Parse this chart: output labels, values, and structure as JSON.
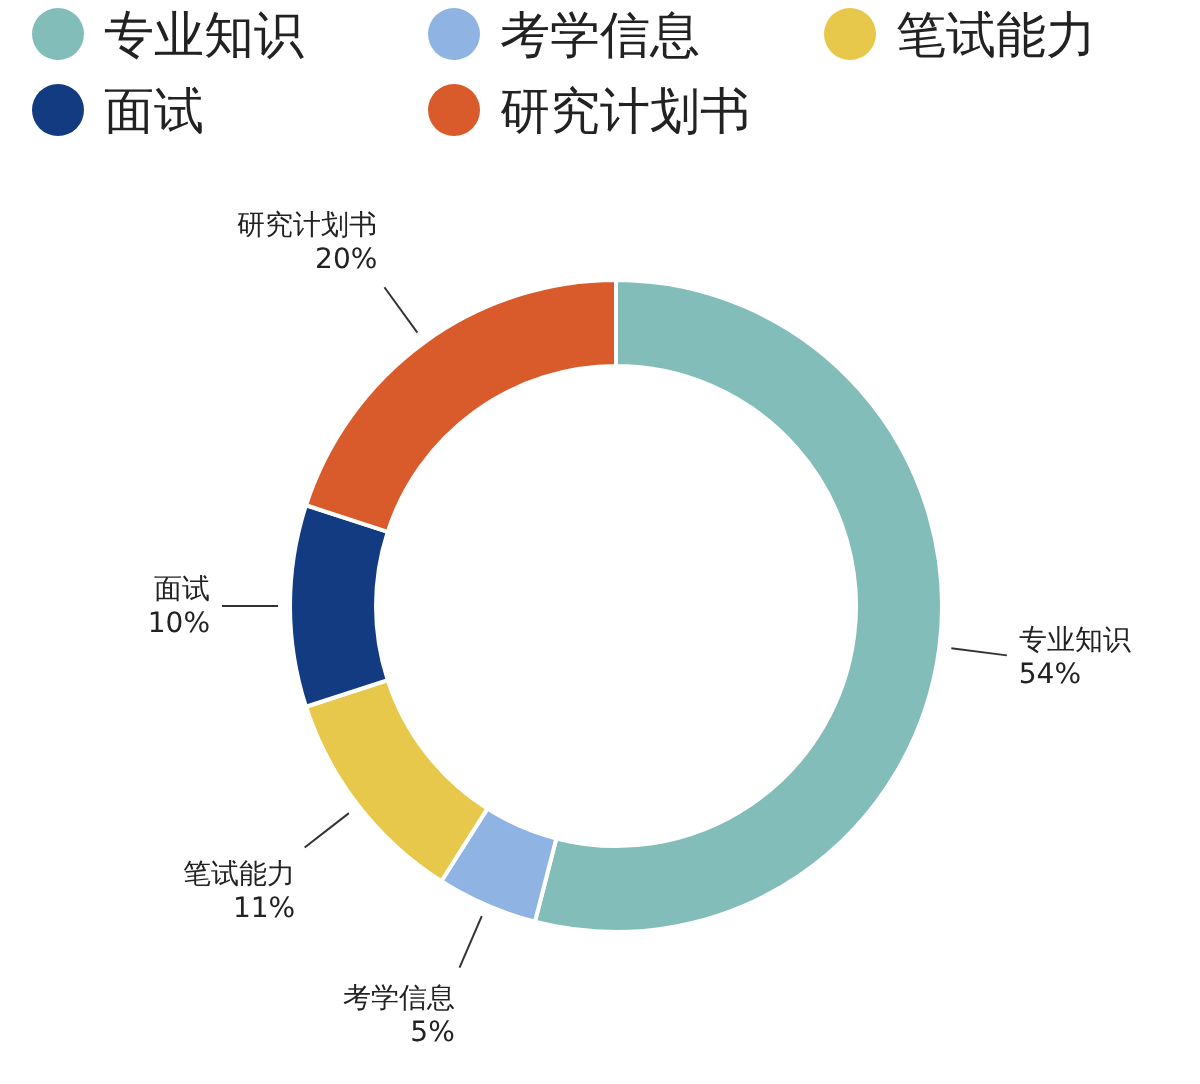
{
  "chart_data": {
    "type": "donut",
    "categories": [
      "专业知识",
      "考学信息",
      "笔试能力",
      "面试",
      "研究计划书"
    ],
    "values": [
      54,
      5,
      11,
      10,
      20
    ],
    "colors": [
      "#82bdb9",
      "#8fb4e3",
      "#e7c84b",
      "#123b82",
      "#d95a2b"
    ],
    "value_labels": [
      "54%",
      "5%",
      "11%",
      "10%",
      "20%"
    ],
    "legend": "top"
  }
}
